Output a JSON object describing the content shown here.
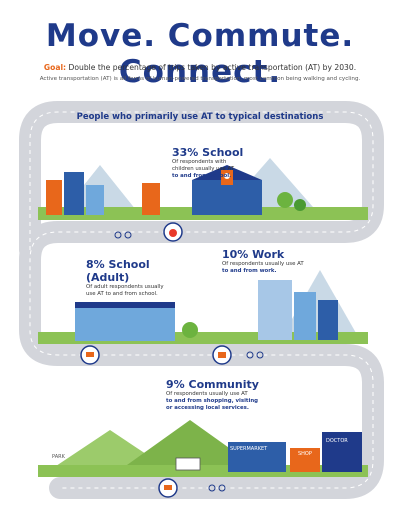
{
  "header": {
    "title": "Move. Commute. Connect.",
    "goal_label": "Goal:",
    "goal_text": "Double the percentage of trips taken by active transportation (AT) by 2030.",
    "subtitle": "Active transportation (AT) is all forms of human-powered transportation, most common being walking and cycling."
  },
  "road_title": "People who primarily use AT to typical destinations",
  "stats": [
    {
      "pct": "33% School",
      "line1": "Of respondents with",
      "line2": "children usually use AT",
      "line3": "to and from school."
    },
    {
      "pct": "8% School (Adult)",
      "line1": "Of adult respondents usually",
      "line2": "use AT to and from school.",
      "line3": ""
    },
    {
      "pct": "10% Work",
      "line1": "Of respondents usually use AT",
      "line2": "to and from work.",
      "line3": ""
    },
    {
      "pct": "9% Community",
      "line1": "Of respondents usually use AT",
      "line2": "to and from shopping, visiting",
      "line3": "or accessing local services."
    }
  ],
  "signs": {
    "supermarket": "SUPERMARKET",
    "shop": "SHOP",
    "doctor": "DOCTOR",
    "park": "PARK"
  },
  "colors": {
    "navy": "#1f3a8a",
    "orange": "#e8671b",
    "road": "#d8d9de",
    "green": "#6cb33f",
    "sky": "#e6f0f7"
  }
}
